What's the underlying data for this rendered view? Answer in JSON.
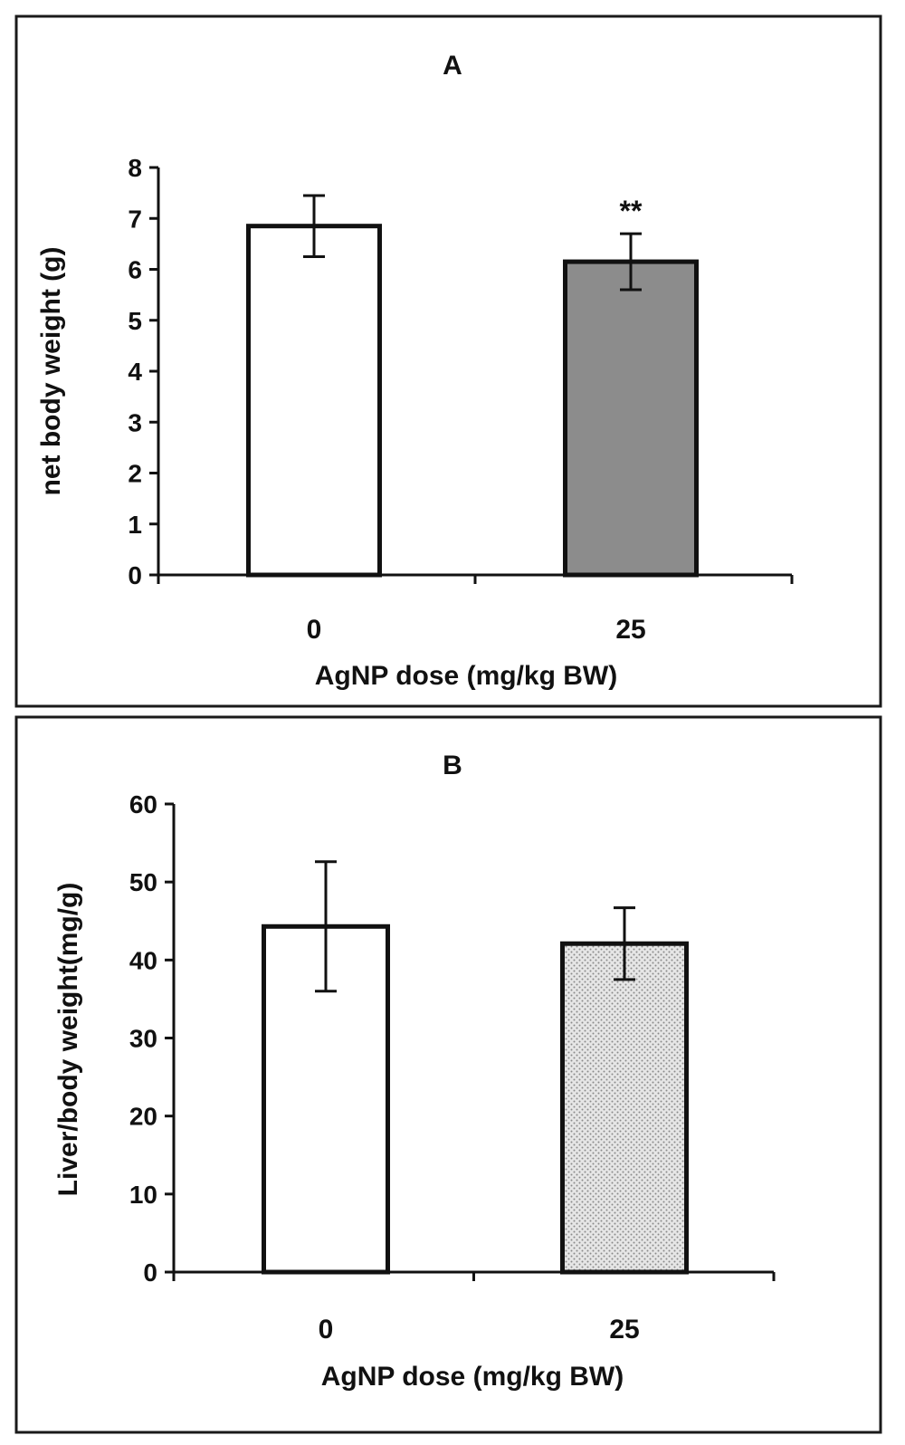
{
  "chart_data": [
    {
      "type": "bar",
      "title": "A",
      "xlabel": "AgNP dose (mg/kg BW)",
      "ylabel": "net body weight (g)",
      "categories": [
        "0",
        "25"
      ],
      "values": [
        6.85,
        6.15
      ],
      "error": [
        0.6,
        0.55
      ],
      "annotations": [
        "",
        "**"
      ],
      "colors": [
        "#ffffff",
        "#8c8c8c"
      ],
      "ylim": [
        0,
        8
      ],
      "yticks": [
        0,
        1,
        2,
        3,
        4,
        5,
        6,
        7,
        8
      ],
      "grid": false
    },
    {
      "type": "bar",
      "title": "B",
      "xlabel": "AgNP dose (mg/kg BW)",
      "ylabel": "Liver/body weight(mg/g)",
      "categories": [
        "0",
        "25"
      ],
      "values": [
        44.3,
        42.1
      ],
      "error": [
        8.3,
        4.6
      ],
      "annotations": [
        "",
        ""
      ],
      "colors": [
        "#ffffff",
        "#d9d9d9"
      ],
      "ylim": [
        0,
        60
      ],
      "yticks": [
        0,
        10,
        20,
        30,
        40,
        50,
        60
      ],
      "grid": false
    }
  ]
}
